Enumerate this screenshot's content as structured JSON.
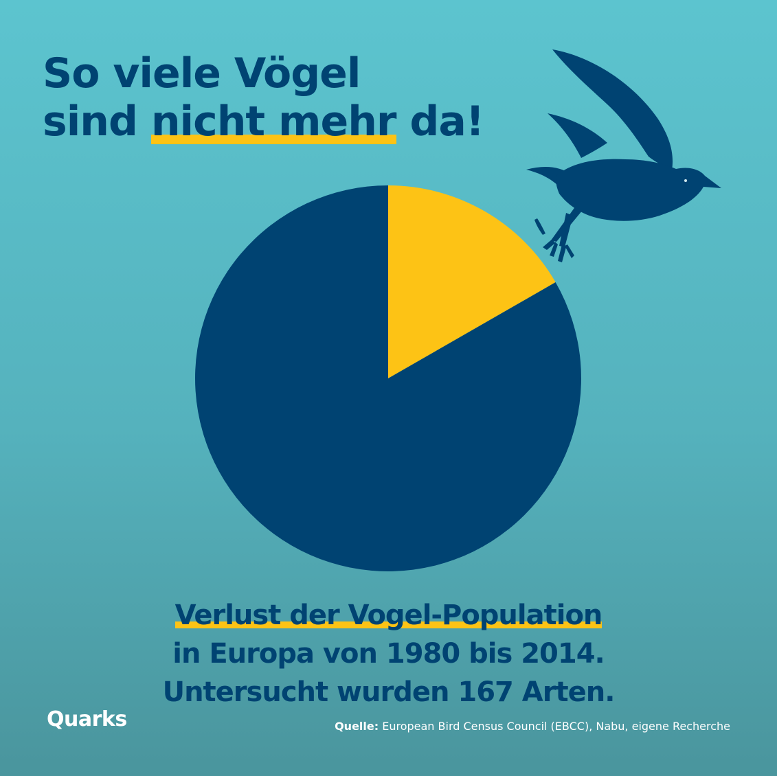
{
  "title": {
    "line1": "So viele Vögel",
    "line2_before": "sind ",
    "line2_highlight": "nicht mehr",
    "line2_after": " da!"
  },
  "subtitle": {
    "line1": "Verlust der Vogel-Population",
    "line2": "in Europa von 1980 bis 2014.",
    "line3": "Untersucht wurden 167 Arten."
  },
  "brand": "Quarks",
  "source": {
    "label": "Quelle:",
    "text": " European Bird Census Council (EBCC), Nabu, eigene Recherche"
  },
  "colors": {
    "background": "#5cc4cf",
    "navy": "#004372",
    "yellow": "#fdc315",
    "white": "#ffffff"
  },
  "icons": [
    "bird-silhouette-icon"
  ],
  "chart_data": {
    "type": "pie",
    "start_angle_deg": 0,
    "direction": "clockwise",
    "slices": [
      {
        "value": 16.7,
        "color": "#fdc315"
      },
      {
        "value": 83.3,
        "color": "#004372"
      }
    ]
  }
}
